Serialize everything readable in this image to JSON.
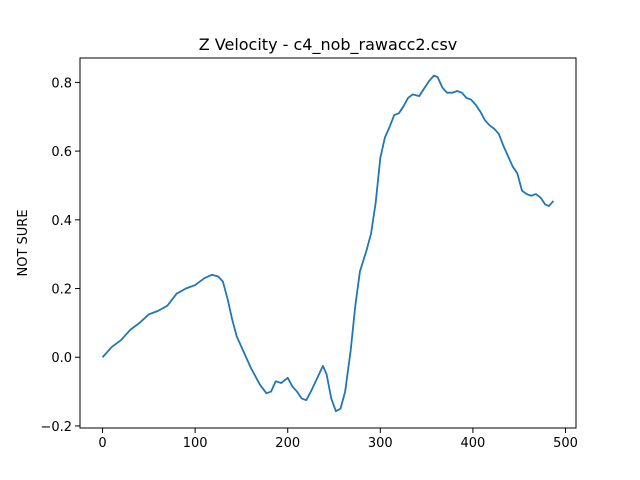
{
  "chart_data": {
    "type": "line",
    "title": "Z Velocity - c4_nob_rawacc2.csv",
    "y_label": "NOT SURE",
    "x": [
      0,
      10,
      20,
      30,
      40,
      50,
      60,
      70,
      80,
      90,
      100,
      110,
      118,
      125,
      130,
      135,
      140,
      145,
      150,
      160,
      170,
      177,
      182,
      187,
      193,
      200,
      205,
      210,
      215,
      220,
      225,
      232,
      238,
      242,
      247,
      252,
      257,
      262,
      268,
      273,
      278,
      285,
      290,
      295,
      300,
      305,
      310,
      315,
      320,
      325,
      330,
      335,
      342,
      348,
      353,
      358,
      362,
      367,
      372,
      378,
      383,
      388,
      393,
      398,
      403,
      408,
      413,
      418,
      423,
      428,
      433,
      438,
      443,
      448,
      453,
      458,
      463,
      468,
      473,
      478,
      482,
      487
    ],
    "series": [
      {
        "name": "Z Velocity",
        "color": "#1f77b4",
        "values": [
          0,
          0.03,
          0.05,
          0.08,
          0.1,
          0.125,
          0.135,
          0.15,
          0.185,
          0.2,
          0.21,
          0.23,
          0.24,
          0.235,
          0.22,
          0.17,
          0.11,
          0.06,
          0.03,
          -0.03,
          -0.08,
          -0.105,
          -0.1,
          -0.07,
          -0.075,
          -0.06,
          -0.085,
          -0.1,
          -0.12,
          -0.125,
          -0.1,
          -0.06,
          -0.025,
          -0.05,
          -0.12,
          -0.157,
          -0.15,
          -0.1,
          0.02,
          0.15,
          0.25,
          0.31,
          0.36,
          0.45,
          0.58,
          0.64,
          0.67,
          0.705,
          0.71,
          0.73,
          0.755,
          0.765,
          0.76,
          0.785,
          0.805,
          0.82,
          0.815,
          0.785,
          0.77,
          0.77,
          0.775,
          0.77,
          0.755,
          0.75,
          0.735,
          0.715,
          0.69,
          0.675,
          0.665,
          0.65,
          0.615,
          0.585,
          0.555,
          0.535,
          0.485,
          0.475,
          0.47,
          0.475,
          0.465,
          0.445,
          0.44,
          0.455
        ]
      }
    ],
    "xlim": [
      -24.35,
      511.35
    ],
    "ylim": [
      -0.206,
      0.871
    ],
    "xticks": [
      0,
      100,
      200,
      300,
      400,
      500
    ],
    "yticks": [
      {
        "value": -0.2,
        "label": "−0.2"
      },
      {
        "value": 0,
        "label": "0.0"
      },
      0.2,
      0.4,
      0.6,
      0.8
    ],
    "grid": false
  }
}
